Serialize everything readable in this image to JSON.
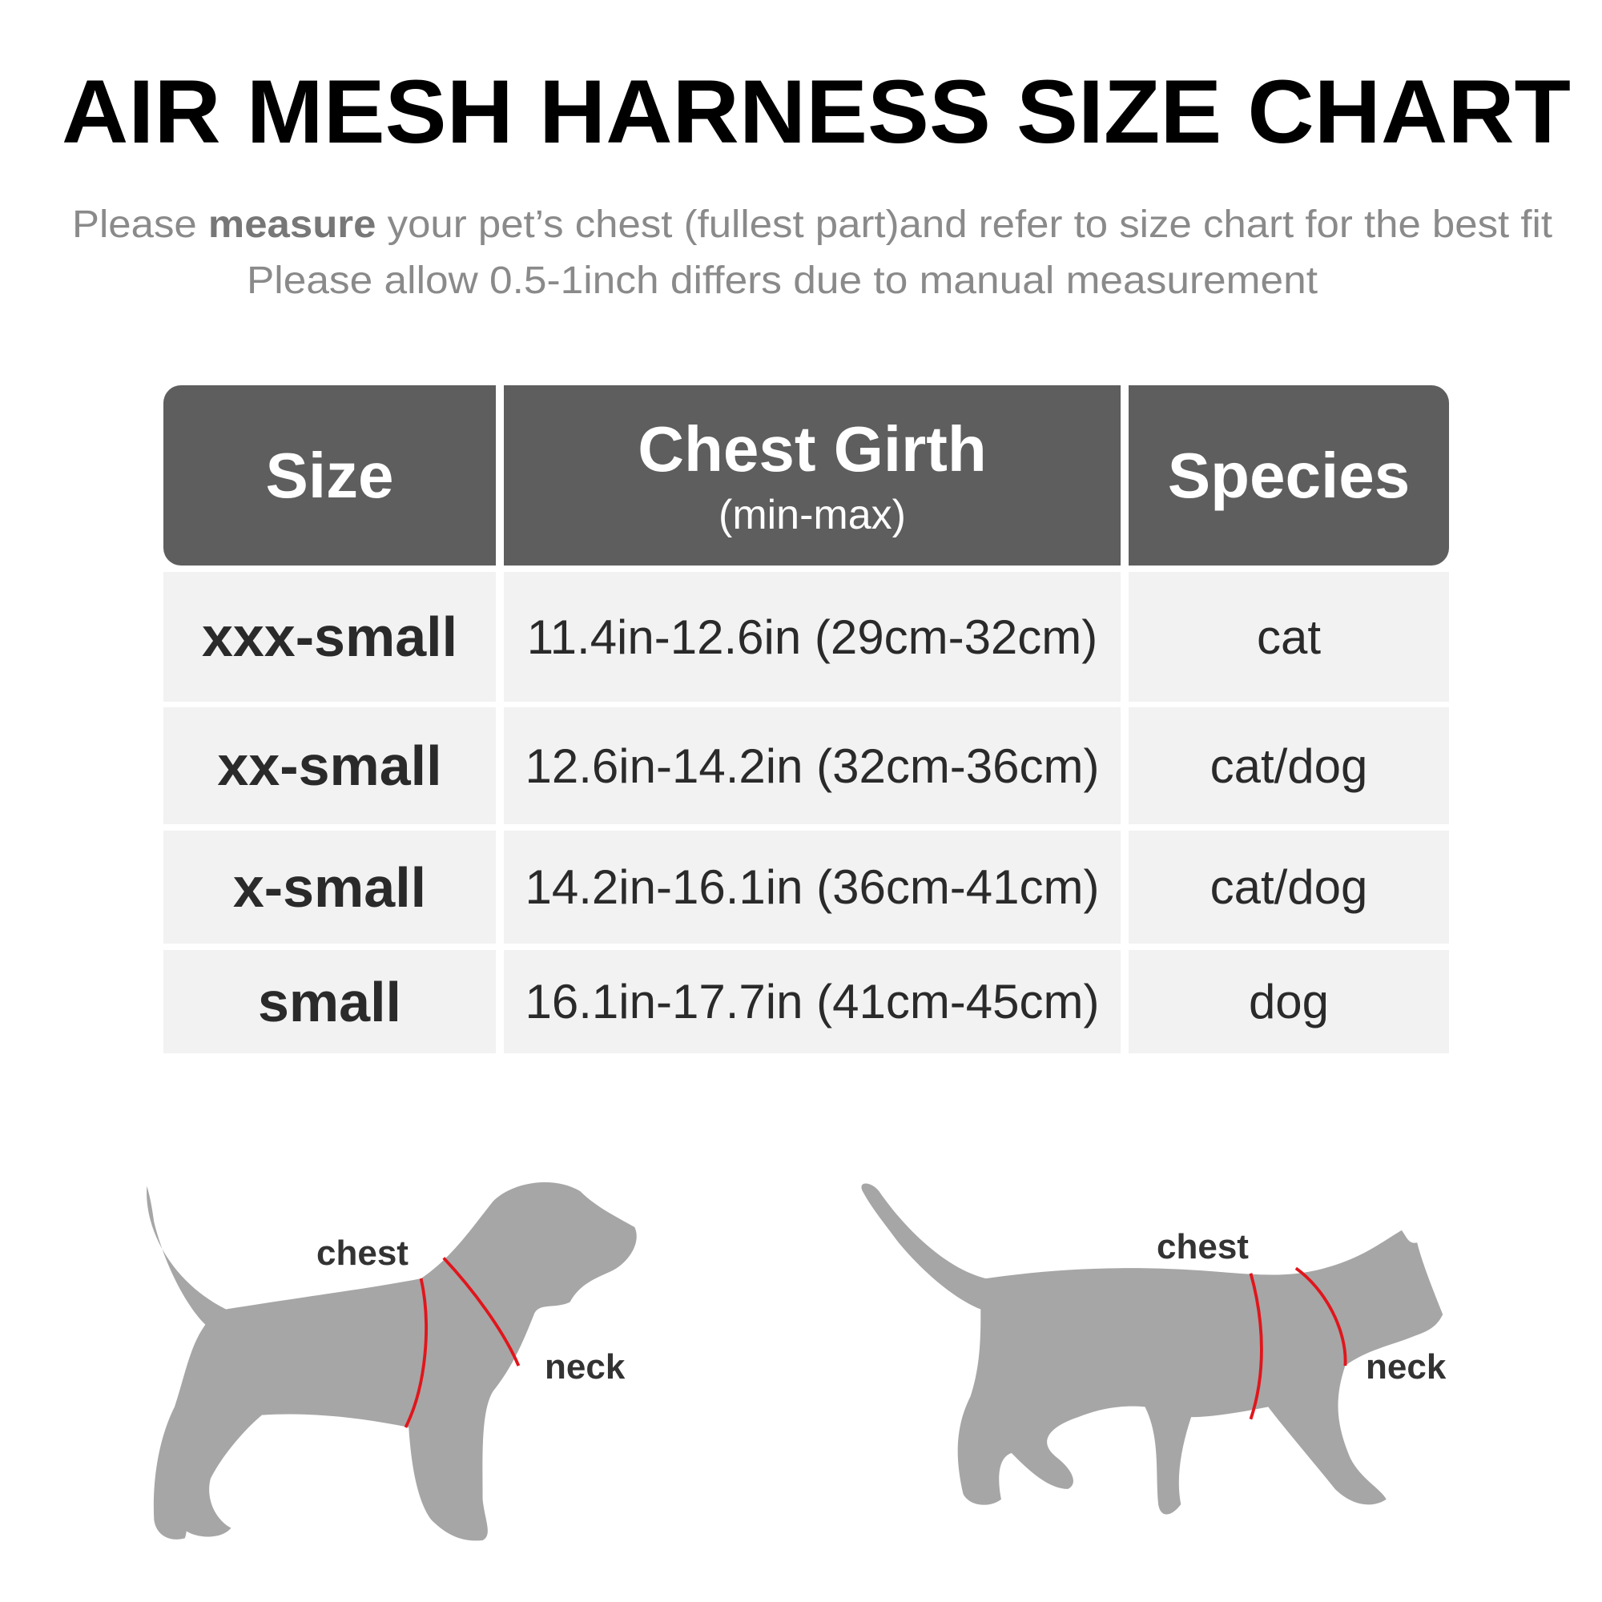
{
  "title": "AIR MESH HARNESS SIZE CHART",
  "subtitle": {
    "line1_pre": "Please ",
    "line1_bold": "measure",
    "line1_post": " your pet’s chest (fullest part)and refer to size chart for the best fit",
    "line2": "Please allow 0.5-1inch differs due to manual measurement"
  },
  "table": {
    "headers": [
      {
        "main": "Size",
        "sub": ""
      },
      {
        "main": "Chest Girth",
        "sub": "(min-max)"
      },
      {
        "main": "Species",
        "sub": ""
      }
    ],
    "rows": [
      {
        "size": "xxx-small",
        "girth": "11.4in-12.6in (29cm-32cm)",
        "species": "cat"
      },
      {
        "size": "xx-small",
        "girth": "12.6in-14.2in (32cm-36cm)",
        "species": "cat/dog"
      },
      {
        "size": "x-small",
        "girth": "14.2in-16.1in (36cm-41cm)",
        "species": "cat/dog"
      },
      {
        "size": "small",
        "girth": "16.1in-17.7in (41cm-45cm)",
        "species": "dog"
      }
    ]
  },
  "diagrams": {
    "dog": {
      "chest_label": "chest",
      "neck_label": "neck"
    },
    "cat": {
      "chest_label": "chest",
      "neck_label": "neck"
    }
  },
  "colors": {
    "header": "#5e5e5e",
    "cell": "#f2f2f2",
    "silhouette": "#a6a6a6",
    "measure_line": "#e0161c",
    "subtitle": "#8a8a8a"
  }
}
